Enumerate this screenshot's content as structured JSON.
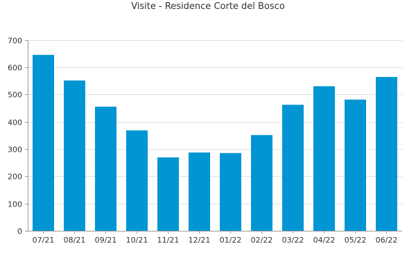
{
  "chart_data": {
    "type": "bar",
    "title": "Visite - Residence Corte del Bosco",
    "categories": [
      "07/21",
      "08/21",
      "09/21",
      "10/21",
      "11/21",
      "12/21",
      "01/22",
      "02/22",
      "03/22",
      "04/22",
      "05/22",
      "06/22"
    ],
    "values": [
      645,
      551,
      455,
      368,
      269,
      287,
      285,
      351,
      462,
      530,
      481,
      564
    ],
    "ylim": [
      0,
      700
    ],
    "yticks": [
      0,
      100,
      200,
      300,
      400,
      500,
      600,
      700
    ],
    "grid": true,
    "bar_color": "#0295d3",
    "grid_color": "#e0e0e0",
    "axis_color": "#9a9a9a",
    "text_color": "#333333"
  }
}
